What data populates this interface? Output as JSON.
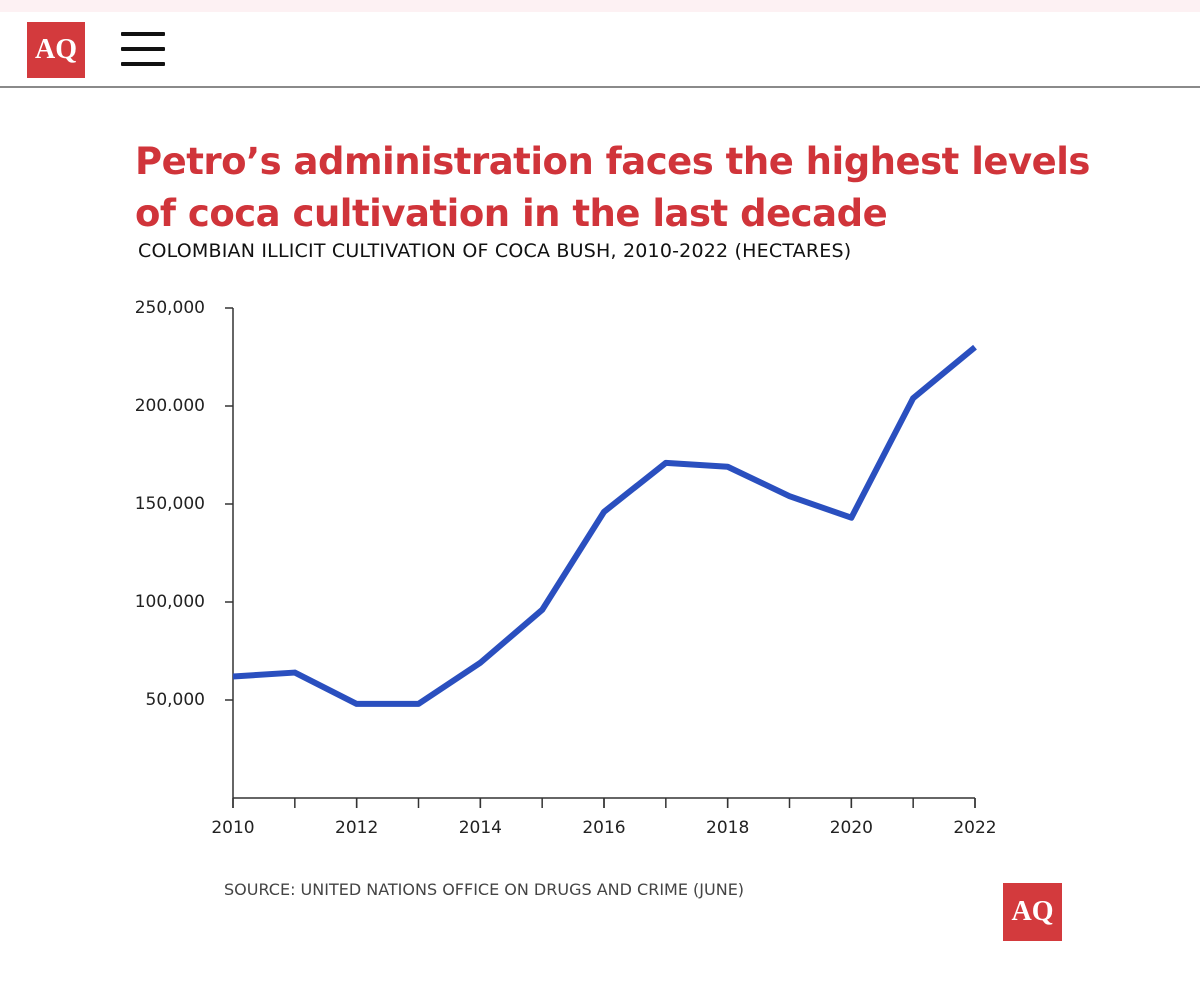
{
  "header": {
    "logo": "AQ"
  },
  "chart_data": {
    "type": "line",
    "title": "Petro’s administration faces the highest levels of coca cultivation in the last decade",
    "subtitle": "COLOMBIAN ILLICIT CULTIVATION OF COCA BUSH, 2010-2022 (HECTARES)",
    "source": "SOURCE: UNITED NATIONS OFFICE ON DRUGS AND CRIME (JUNE)",
    "x": [
      2010,
      2011,
      2012,
      2013,
      2014,
      2015,
      2016,
      2017,
      2018,
      2019,
      2020,
      2021,
      2022
    ],
    "series": [
      {
        "name": "Coca cultivation",
        "color": "#2a4fbf",
        "values": [
          62000,
          64000,
          48000,
          48000,
          69000,
          96000,
          146000,
          171000,
          169000,
          154000,
          143000,
          204000,
          230000
        ]
      }
    ],
    "xlim": [
      2010,
      2022
    ],
    "xticks": [
      2010,
      2012,
      2014,
      2016,
      2018,
      2020,
      2022
    ],
    "ylim": [
      0,
      250000
    ],
    "yticks": [
      {
        "value": 50000,
        "label": "50,000"
      },
      {
        "value": 100000,
        "label": "100,000"
      },
      {
        "value": 150000,
        "label": "150,000"
      },
      {
        "value": 200000,
        "label": "200.000"
      },
      {
        "value": 250000,
        "label": "250,000"
      }
    ],
    "grid": false,
    "logo": "AQ"
  }
}
